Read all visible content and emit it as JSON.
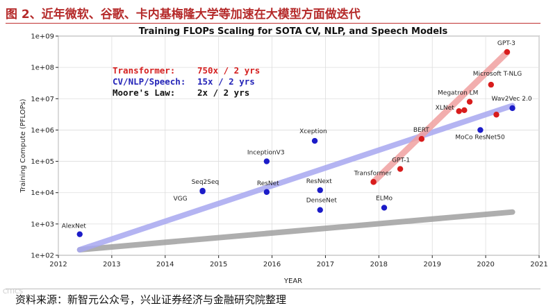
{
  "figure": {
    "caption": "图 2、近年微软、谷歌、卡内基梅隆大学等加速在大模型方面做迭代",
    "source": "资料来源：新智元公众号，兴业证券经济与金融研究院整理",
    "watermark": "CITICS"
  },
  "chart_data": {
    "type": "scatter",
    "title": "Training FLOPs Scaling for SOTA CV, NLP, and Speech Models",
    "xlabel": "YEAR",
    "ylabel": "Training Compute (PFLOPs)",
    "xlim": [
      2012,
      2021
    ],
    "ylim_log10": [
      2,
      9
    ],
    "x_ticks": [
      "2012",
      "2013",
      "2014",
      "2015",
      "2016",
      "2017",
      "2018",
      "2019",
      "2020",
      "2021"
    ],
    "y_ticks": [
      "1e+02",
      "1e+03",
      "1e+04",
      "1e+05",
      "1e+06",
      "1e+07",
      "1e+08",
      "1e+09"
    ],
    "legend": [
      {
        "label": "Transformer:",
        "value": "750x / 2 yrs",
        "color": "#d42020"
      },
      {
        "label": "CV/NLP/Speech:",
        "value": "15x / 2 yrs",
        "color": "#2424b8"
      },
      {
        "label": "Moore's Law:",
        "value": "2x / 2 yrs",
        "color": "#111111"
      }
    ],
    "series": [
      {
        "name": "CV/NLP/Speech",
        "color": "#1c1cc8",
        "points": [
          {
            "label": "AlexNet",
            "x": 2012.4,
            "y": 470
          },
          {
            "label": "VGG",
            "x": 2014.7,
            "y": 11000
          },
          {
            "label": "Seq2Seq",
            "x": 2014.7,
            "y": 11500
          },
          {
            "label": "InceptionV3",
            "x": 2015.9,
            "y": 100000
          },
          {
            "label": "ResNet",
            "x": 2015.9,
            "y": 10500
          },
          {
            "label": "Xception",
            "x": 2016.8,
            "y": 450000
          },
          {
            "label": "ResNext",
            "x": 2016.9,
            "y": 12000
          },
          {
            "label": "DenseNet",
            "x": 2016.9,
            "y": 2800
          },
          {
            "label": "ELMo",
            "x": 2018.1,
            "y": 3300
          },
          {
            "label": "MoCo ResNet50",
            "x": 2019.9,
            "y": 1000000
          },
          {
            "label": "Wav2Vec 2.0",
            "x": 2020.5,
            "y": 5000000
          }
        ]
      },
      {
        "name": "Transformer",
        "color": "#d81c1c",
        "points": [
          {
            "label": "Transformer",
            "x": 2017.9,
            "y": 22000
          },
          {
            "label": "GPT-1",
            "x": 2018.4,
            "y": 57000
          },
          {
            "label": "BERT",
            "x": 2018.8,
            "y": 520000
          },
          {
            "label": "XLNet",
            "x": 2019.5,
            "y": 4000000
          },
          {
            "label": "",
            "x": 2019.6,
            "y": 4300000
          },
          {
            "label": "Megatron LM",
            "x": 2019.7,
            "y": 8000000
          },
          {
            "label": "Microsoft T-NLG",
            "x": 2020.1,
            "y": 28000000
          },
          {
            "label": "",
            "x": 2020.2,
            "y": 3100000
          },
          {
            "label": "GPT-3",
            "x": 2020.4,
            "y": 310000000
          }
        ]
      }
    ],
    "trend_lines": [
      {
        "name": "Moore's Law",
        "color": "#a0a0a0",
        "x": [
          2012.4,
          2020.5
        ],
        "y": [
          150,
          2400
        ]
      },
      {
        "name": "CV/NLP/Speech",
        "color": "#a8a8f0",
        "x": [
          2012.4,
          2020.5
        ],
        "y": [
          150,
          6000000
        ]
      },
      {
        "name": "Transformer",
        "color": "#f0a0a0",
        "x": [
          2017.9,
          2020.4
        ],
        "y": [
          22000,
          300000000
        ]
      }
    ]
  }
}
